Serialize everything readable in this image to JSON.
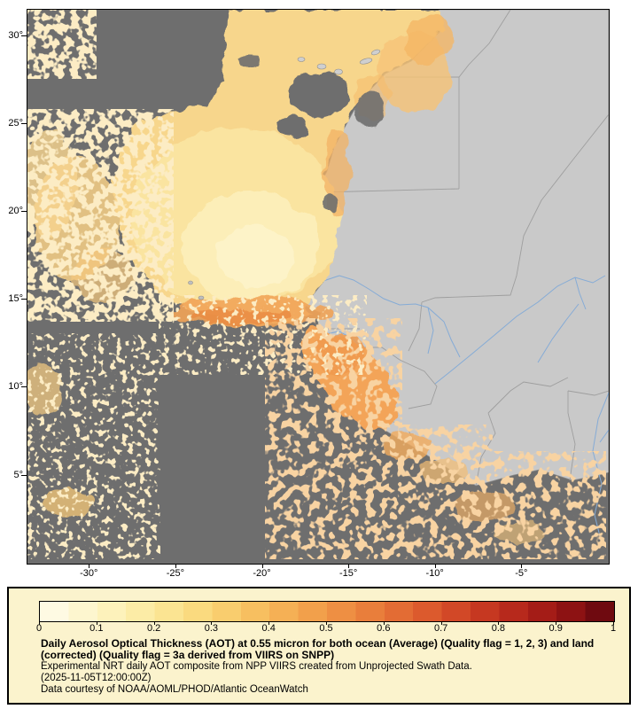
{
  "map": {
    "y_axis_labels": [
      "30°",
      "25°",
      "20°",
      "15°",
      "10°",
      "5°"
    ],
    "x_axis_labels": [
      "-30°",
      "-25°",
      "-20°",
      "-15°",
      "-10°",
      "-5°"
    ],
    "colors": {
      "ocean_no_data": "#6e6e6e",
      "land": "#c9c9c9",
      "country_border": "#9e9e9e",
      "river": "#85abd6",
      "aerosol_low": "#fdf4c8",
      "aerosol_mid": "#f7d68c",
      "aerosol_high": "#ef9a4e",
      "frame": "#000000"
    }
  },
  "legend": {
    "background": "#fbf3cd",
    "tick_labels": [
      "0",
      "0.1",
      "0.2",
      "0.3",
      "0.4",
      "0.5",
      "0.6",
      "0.7",
      "0.8",
      "0.9",
      "1"
    ],
    "value_range": [
      0,
      1
    ],
    "colorbar_stops": [
      "#fefae3",
      "#fdf6cf",
      "#fdf2bb",
      "#fceca6",
      "#fbe492",
      "#fada7f",
      "#f9cd6e",
      "#f7bf60",
      "#f5b055",
      "#f2a04b",
      "#ee8f43",
      "#e97e3b",
      "#e36c34",
      "#dc5a2d",
      "#d24827",
      "#c63821",
      "#b7291c",
      "#a41c17",
      "#8d1213",
      "#6f0a10"
    ],
    "title": "Daily Aerosol Optical Thickness (AOT) at 0.55 micron for both ocean (Average) (Quality flag = 1, 2, 3) and land (corrected) (Quality flag = 3a derived from VIIRS on SNPP)",
    "subtitle_line": "Experimental NRT daily AOT composite from NPP VIIRS created from Unprojected Swath Data.",
    "timestamp": "(2025-11-05T12:00:00Z)",
    "credit": "Data courtesy of NOAA/AOML/PHOD/Atlantic OceanWatch"
  }
}
